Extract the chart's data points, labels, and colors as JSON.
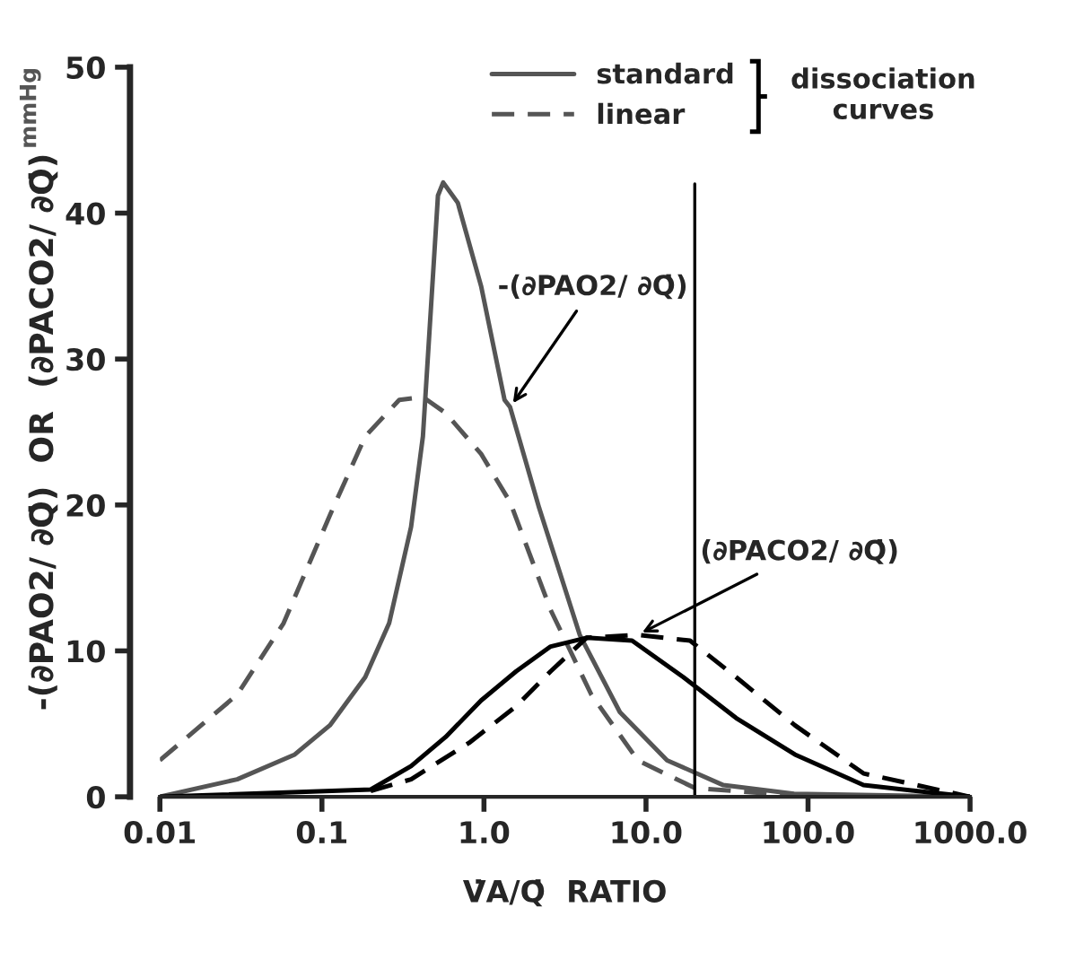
{
  "chart_data": {
    "type": "line",
    "log": "x",
    "xlabel": "V̇A/Q̇  RATIO",
    "ylabel": "-(∂PAO2/ ∂Q̇)  OR  (∂PACO2/ ∂Q̇)",
    "y2label": "mmHg",
    "xlim": [
      0.01,
      1000
    ],
    "xticks": [
      0.01,
      0.1,
      {
        "value": 1,
        "label": "1.0"
      },
      {
        "value": 10,
        "label": "10.0"
      },
      {
        "value": 100,
        "label": "100.0"
      },
      {
        "value": 1000,
        "label": "1000.0"
      }
    ],
    "ylim": [
      0,
      50
    ],
    "yticks": [
      0,
      10,
      20,
      30,
      40,
      50
    ],
    "grid": false,
    "legend": "top right",
    "legend_title": "dissociation curves",
    "marker": "none",
    "series": [
      {
        "name": "standard",
        "color": "#555555",
        "line_style": "solid",
        "x": [
          0.01,
          0.03,
          0.068,
          0.112,
          0.185,
          0.26,
          0.355,
          0.42,
          0.48,
          0.52,
          0.56,
          0.69,
          0.96,
          1.34,
          1.45,
          2.19,
          3.9,
          6.9,
          13.5,
          30,
          82,
          1000
        ],
        "values": [
          0,
          1.2,
          2.9,
          4.9,
          8.2,
          11.9,
          18.5,
          24.7,
          35,
          41.2,
          42.1,
          40.7,
          35,
          27.2,
          26.7,
          19.8,
          11.1,
          5.8,
          2.5,
          0.8,
          0.2,
          0
        ]
      },
      {
        "name": "linear",
        "color": "#555555",
        "line_style": "dashed",
        "x": [
          0.01,
          0.03,
          0.058,
          0.112,
          0.185,
          0.3,
          0.42,
          0.58,
          0.96,
          1.45,
          2.58,
          4.6,
          8.9,
          20,
          60,
          100
        ],
        "values": [
          2.5,
          7.0,
          11.9,
          19.3,
          24.7,
          27.2,
          27.4,
          26.3,
          23.5,
          20.2,
          12.8,
          7.0,
          2.5,
          0.6,
          0.2,
          0
        ]
      },
      {
        "color": "#000000",
        "line_style": "solid",
        "x": [
          0.01,
          0.2,
          0.355,
          0.58,
          0.96,
          1.58,
          2.58,
          4.3,
          8.2,
          17,
          36,
          83,
          220,
          1000
        ],
        "values": [
          0,
          0.5,
          2.1,
          4.1,
          6.6,
          8.6,
          10.3,
          10.9,
          10.7,
          8.2,
          5.4,
          2.9,
          0.8,
          0
        ]
      },
      {
        "color": "#000000",
        "line_style": "dashed",
        "x": [
          0.2,
          0.355,
          0.81,
          1.58,
          2.58,
          4.3,
          8.9,
          18.7,
          36,
          83,
          220,
          1000
        ],
        "values": [
          0.4,
          1.2,
          3.7,
          6.2,
          8.6,
          10.9,
          11.1,
          10.7,
          8.2,
          4.9,
          1.6,
          0
        ]
      }
    ],
    "ref_lines": [
      {
        "axis": "x",
        "value": 20,
        "color": "#000000",
        "line_style": "solid"
      }
    ],
    "annotations": [
      {
        "text": "-(∂PAO2/ ∂Q̇)",
        "x": 1.45,
        "y": 26.7
      },
      {
        "text": "(∂PACO2/ ∂Q̇)",
        "x": 8.9,
        "y": 11.1
      }
    ]
  }
}
